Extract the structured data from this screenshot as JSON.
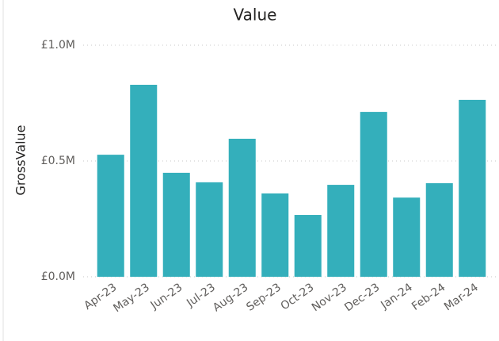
{
  "chart_data": {
    "type": "bar",
    "title": "Value",
    "y_label": "GrossValue",
    "categories": [
      "Apr-23",
      "May-23",
      "Jun-23",
      "Jul-23",
      "Aug-23",
      "Sep-23",
      "Oct-23",
      "Nov-23",
      "Dec-23",
      "Jan-24",
      "Feb-24",
      "Mar-24"
    ],
    "values": [
      527000,
      829000,
      449000,
      408000,
      596000,
      360000,
      267000,
      397000,
      712000,
      342000,
      404000,
      764000
    ],
    "color": "#34afbb",
    "ylim": [
      0,
      1000000
    ],
    "yticks": [
      {
        "value": 0,
        "label": "£0.0M"
      },
      {
        "value": 500000,
        "label": "£0.5M"
      },
      {
        "value": 1000000,
        "label": "£1.0M"
      }
    ],
    "grid": true
  }
}
